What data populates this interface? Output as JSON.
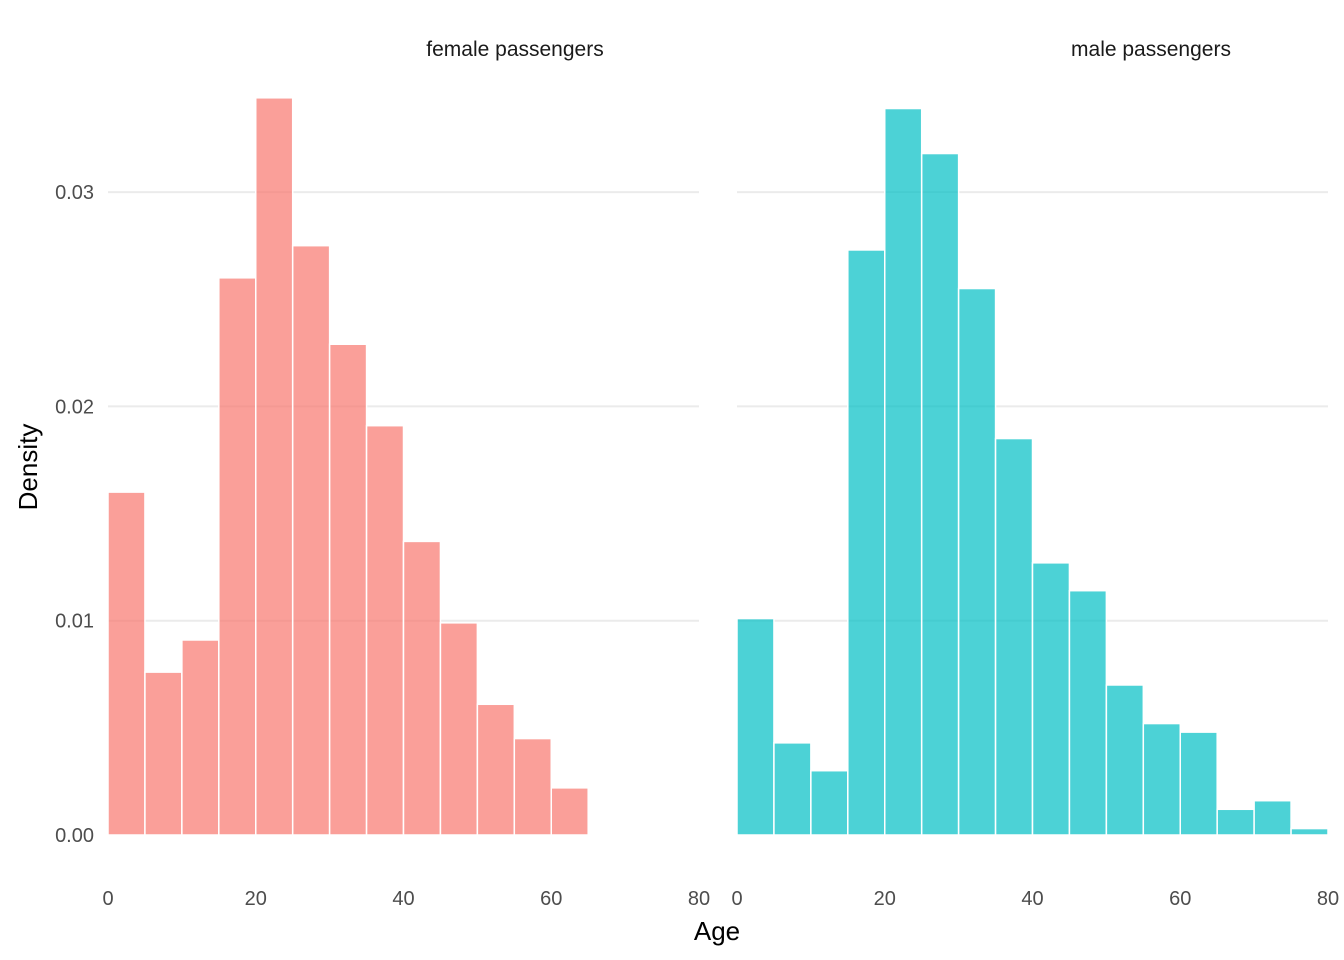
{
  "chart_data": {
    "type": "bar",
    "subtype": "faceted-histogram",
    "xlabel": "Age",
    "ylabel": "Density",
    "xlim": [
      0,
      80
    ],
    "ylim": [
      0,
      0.0345
    ],
    "x_ticks": [
      0,
      20,
      40,
      60,
      80
    ],
    "y_ticks": [
      0.0,
      0.01,
      0.02,
      0.03
    ],
    "y_tick_labels": [
      "0.00",
      "0.01",
      "0.02",
      "0.03"
    ],
    "bin_width": 5,
    "grid": "horizontal major",
    "legend": "none",
    "panels": [
      {
        "strip_label": "female passengers",
        "color": "#F8766D",
        "bins_start": [
          0,
          5,
          10,
          15,
          20,
          25,
          30,
          35,
          40,
          45,
          50,
          55,
          60
        ],
        "values": [
          0.016,
          0.0076,
          0.0091,
          0.026,
          0.0344,
          0.0275,
          0.0229,
          0.0191,
          0.0137,
          0.0099,
          0.0061,
          0.0045,
          0.0022
        ]
      },
      {
        "strip_label": "male passengers",
        "color": "#00BFC4",
        "bins_start": [
          0,
          5,
          10,
          15,
          20,
          25,
          30,
          35,
          40,
          45,
          50,
          55,
          60,
          65,
          70,
          75
        ],
        "values": [
          0.0101,
          0.0043,
          0.003,
          0.0273,
          0.0339,
          0.0318,
          0.0255,
          0.0185,
          0.0127,
          0.0114,
          0.007,
          0.0052,
          0.0048,
          0.0012,
          0.0016,
          0.0003
        ]
      }
    ]
  }
}
